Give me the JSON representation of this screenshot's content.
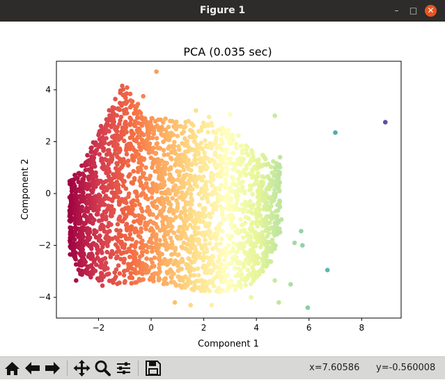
{
  "window": {
    "title": "Figure 1"
  },
  "toolbar": {
    "buttons": [
      "home-icon",
      "back-arrow-icon",
      "forward-arrow-icon",
      "pan-icon",
      "zoom-icon",
      "configure-subplots-icon",
      "save-icon"
    ],
    "x_readout": "x=7.60586",
    "y_readout": "y=-0.560008"
  },
  "colors": {
    "colormap": "Spectral",
    "titlebar": "#2d2c2b",
    "toolbar": "#d8d8d6"
  },
  "chart_data": {
    "type": "scatter",
    "title": "PCA (0.035 sec)",
    "xlabel": "Component 1",
    "ylabel": "Component 2",
    "xlim": [
      -3.6,
      9.5
    ],
    "ylim": [
      -4.8,
      5.1
    ],
    "xticks": [
      -2,
      0,
      2,
      4,
      6,
      8
    ],
    "yticks": [
      -4,
      -2,
      0,
      2,
      4
    ],
    "xtick_labels": [
      "−2",
      "0",
      "2",
      "4",
      "6",
      "8"
    ],
    "ytick_labels": [
      "−4",
      "−2",
      "0",
      "2",
      "4"
    ],
    "grid": false,
    "colored_by": "Component 1 (Spectral colormap)",
    "points": [
      [
        8.9,
        2.75
      ],
      [
        7.0,
        2.35
      ],
      [
        6.7,
        -2.95
      ],
      [
        5.95,
        -4.4
      ],
      [
        5.75,
        -2.0
      ],
      [
        5.3,
        -3.5
      ],
      [
        4.7,
        3.0
      ],
      [
        4.85,
        -4.2
      ],
      [
        4.7,
        -3.35
      ],
      [
        4.9,
        1.4
      ],
      [
        4.85,
        0.3
      ],
      [
        4.95,
        -1.0
      ],
      [
        0.2,
        4.7
      ],
      [
        3.0,
        3.05
      ],
      [
        -0.3,
        3.75
      ],
      [
        1.5,
        -4.3
      ],
      [
        2.3,
        -4.3
      ],
      [
        0.9,
        -4.2
      ],
      [
        -1.1,
        4.15
      ],
      [
        -2.85,
        -3.35
      ],
      [
        1.7,
        3.2
      ],
      [
        -1.85,
        -3.55
      ],
      [
        4.25,
        -3.0
      ],
      [
        3.8,
        -4.0
      ],
      [
        2.2,
        2.95
      ],
      [
        -0.5,
        3.45
      ],
      [
        5.45,
        -1.9
      ],
      [
        5.7,
        -1.45
      ]
    ]
  }
}
